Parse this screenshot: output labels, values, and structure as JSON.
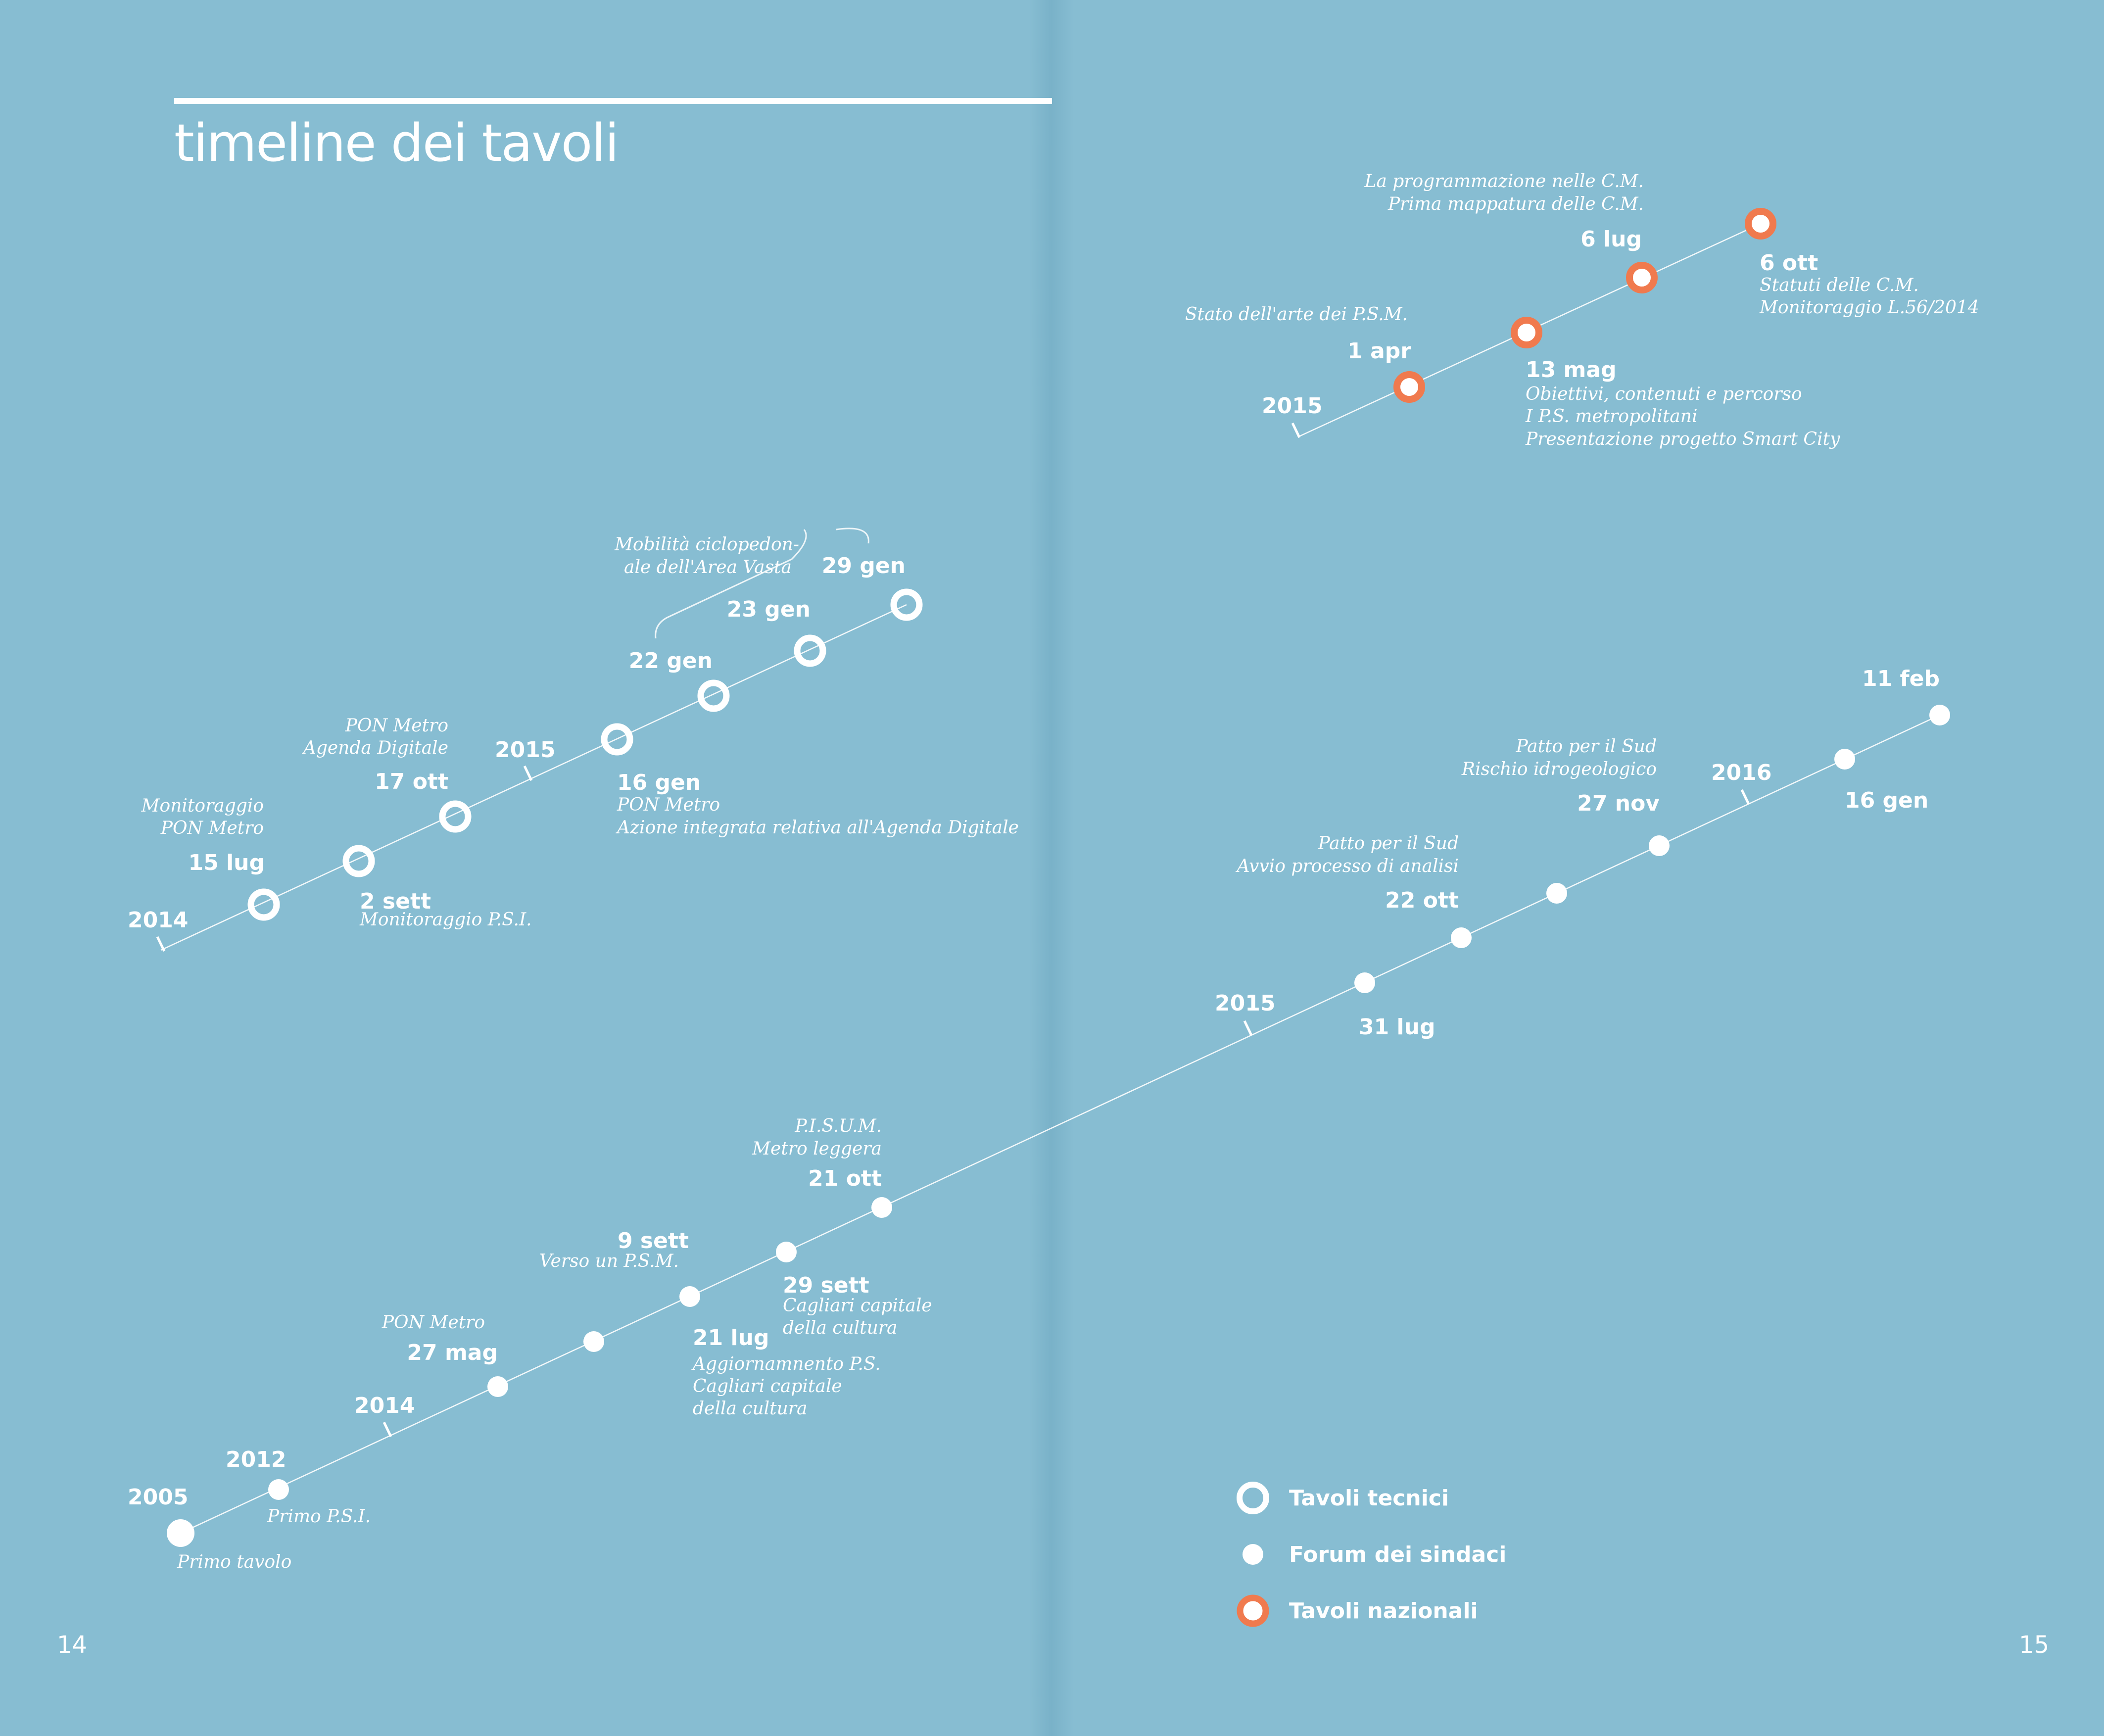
{
  "title": "timeline dei tavoli",
  "page_left": "14",
  "page_right": "15",
  "colors": {
    "background": "#87bdd2",
    "white": "#ffffff",
    "orange": "#f07a4e"
  },
  "legend": [
    {
      "marker": "ring",
      "label": "Tavoli tecnici"
    },
    {
      "marker": "dot",
      "label": "Forum dei sindaci"
    },
    {
      "marker": "ring-orange",
      "label": "Tavoli nazionali"
    }
  ],
  "tecnici": {
    "years": [
      "2014",
      "2015"
    ],
    "events": [
      {
        "date": "15 lug",
        "notes": [
          "Monitoraggio",
          "PON Metro"
        ]
      },
      {
        "date": "2 sett",
        "notes": [
          "Monitoraggio P.S.I."
        ]
      },
      {
        "date": "17 ott",
        "notes": [
          "PON Metro",
          "Agenda Digitale"
        ]
      },
      {
        "date": "16 gen",
        "notes": [
          "PON Metro",
          "Azione integrata relativa all'Agenda Digitale"
        ]
      },
      {
        "date": "22 gen",
        "notes": []
      },
      {
        "date": "23 gen",
        "notes": []
      },
      {
        "date": "29 gen",
        "notes": []
      }
    ],
    "bracket_note": [
      "Mobilità ciclopedon-",
      "ale dell'Area Vasta"
    ]
  },
  "nazionali": {
    "years": [
      "2015"
    ],
    "events": [
      {
        "date": "1 apr",
        "notes": [
          "Stato dell'arte dei P.S.M."
        ]
      },
      {
        "date": "13 mag",
        "notes": [
          "Obiettivi, contenuti e percorso",
          "I P.S. metropolitani",
          "Presentazione progetto Smart City"
        ]
      },
      {
        "date": "6 lug",
        "notes": [
          "La programmazione nelle C.M.",
          "Prima mappatura delle C.M."
        ]
      },
      {
        "date": "6 ott",
        "notes": [
          "Statuti delle C.M.",
          "Monitoraggio L.56/2014"
        ]
      }
    ]
  },
  "forum": {
    "years": [
      "2014",
      "2015",
      "2016"
    ],
    "events": [
      {
        "date": "2005",
        "notes": [
          "Primo tavolo"
        ]
      },
      {
        "date": "2012",
        "notes": [
          "Primo P.S.I."
        ]
      },
      {
        "date": "27 mag",
        "notes": [
          "PON Metro"
        ]
      },
      {
        "date": "",
        "notes": []
      },
      {
        "date": "21 lug",
        "notes": [
          "Aggiornamnento P.S.",
          "Cagliari capitale",
          "della cultura"
        ]
      },
      {
        "date": "9 sett",
        "notes": [
          "Verso un P.S.M."
        ]
      },
      {
        "date": "29 sett",
        "notes": [
          "Cagliari capitale",
          "della cultura"
        ]
      },
      {
        "date": "21 ott",
        "notes": [
          "P.I.S.U.M.",
          "Metro leggera"
        ]
      },
      {
        "date": "31 lug",
        "notes": []
      },
      {
        "date": "22 ott",
        "notes": [
          "Patto per il Sud",
          "Avvio processo di analisi"
        ]
      },
      {
        "date": "",
        "notes": []
      },
      {
        "date": "27 nov",
        "notes": [
          "Patto per il Sud",
          "Rischio idrogeologico"
        ]
      },
      {
        "date": "16 gen",
        "notes": []
      },
      {
        "date": "11 feb",
        "notes": []
      }
    ]
  }
}
